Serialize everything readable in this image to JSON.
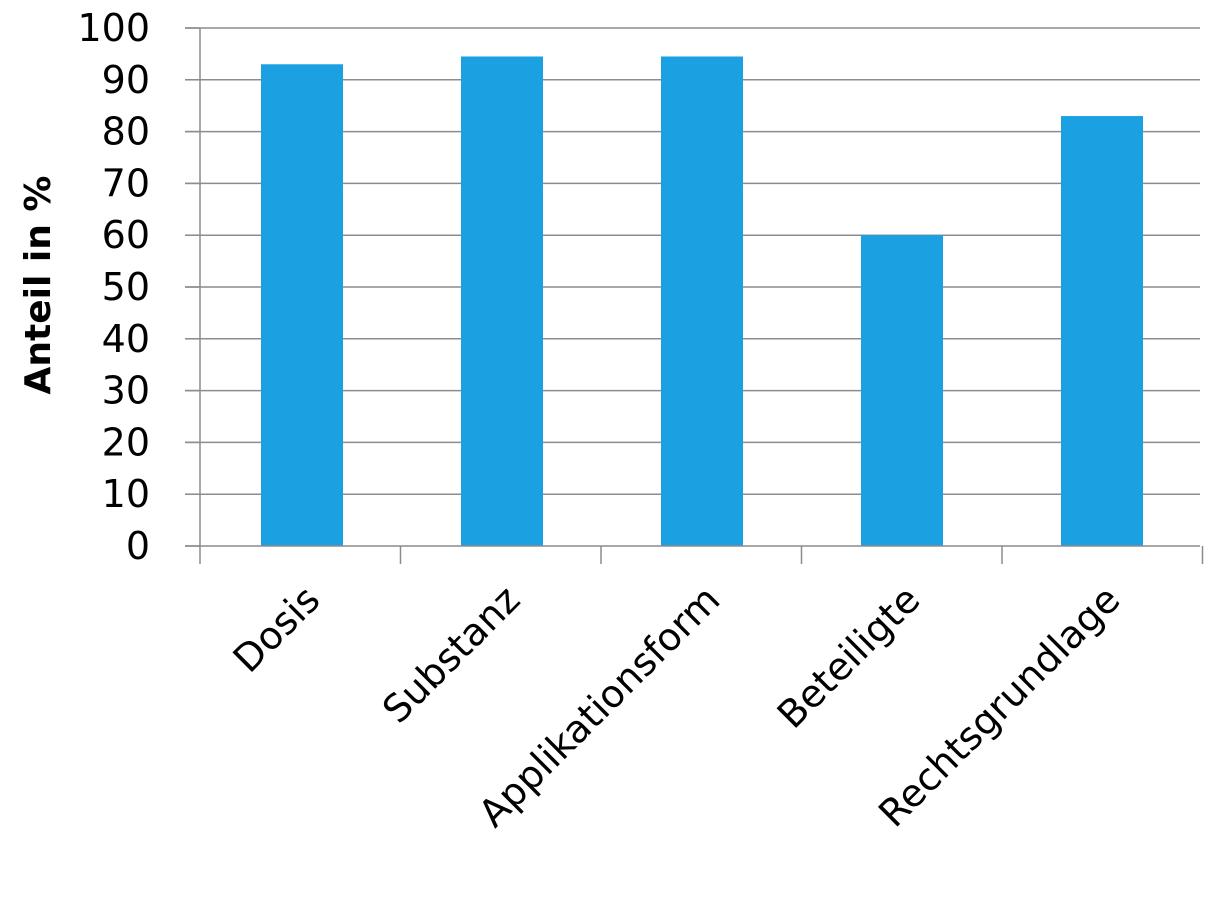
{
  "chart_data": {
    "type": "bar",
    "title": "",
    "xlabel": "",
    "ylabel": "Anteil in %",
    "categories": [
      "Dosis",
      "Substanz",
      "Applikationsform",
      "Beteiligte",
      "Rechtsgrundlage"
    ],
    "values": [
      93,
      94.5,
      94.5,
      60,
      83
    ],
    "ylim": [
      0,
      100
    ],
    "yticks": [
      0,
      10,
      20,
      30,
      40,
      50,
      60,
      70,
      80,
      90,
      100
    ],
    "grid": true,
    "legend": "none",
    "colors": {
      "bar": "#1ba1e2",
      "grid": "#8c8c8c"
    }
  }
}
